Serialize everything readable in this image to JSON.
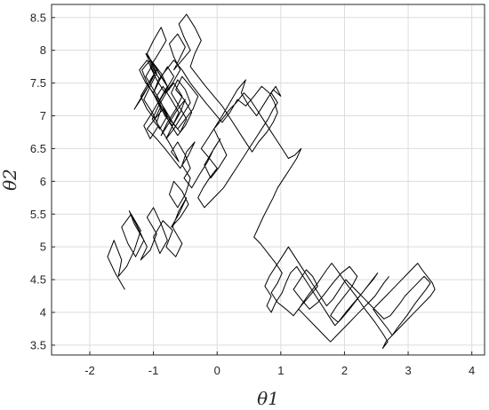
{
  "chart_data": {
    "type": "line",
    "title": "",
    "xlabel": "θ1",
    "ylabel": "θ2",
    "xlim": [
      -2.6,
      4.2
    ],
    "ylim": [
      3.35,
      8.7
    ],
    "x_ticks": [
      -2,
      -1,
      0,
      1,
      2,
      3,
      4
    ],
    "y_ticks": [
      3.5,
      4,
      4.5,
      5,
      5.5,
      6,
      6.5,
      7,
      7.5,
      8,
      8.5
    ],
    "x_tick_labels": [
      "-2",
      "-1",
      "0",
      "1",
      "2",
      "3",
      "4"
    ],
    "y_tick_labels": [
      "3.5",
      "4",
      "4.5",
      "5",
      "5.5",
      "6",
      "6.5",
      "7",
      "7.5",
      "8",
      "8.5"
    ],
    "grid": true,
    "legend": "none",
    "series": [
      {
        "color": "#000000",
        "x": [
          -1.45,
          -1.6,
          -1.72,
          -1.62,
          -1.5,
          -1.55,
          -1.42,
          -1.3,
          -1.2,
          -1.35,
          -1.5,
          -1.4,
          -1.28,
          -1.15,
          -1.3,
          -1.38,
          -1.25,
          -1.1,
          -1.2,
          -1.05,
          -0.95,
          -1.1,
          -1.0,
          -0.88,
          -0.78,
          -0.9,
          -1.0,
          -0.85,
          -0.7,
          -0.8,
          -0.65,
          -0.55,
          -0.7,
          -0.6,
          -0.48,
          -0.6,
          -0.72,
          -0.58,
          -0.45,
          -0.55,
          -0.68,
          -0.75,
          -0.62,
          -0.5,
          -0.42,
          -0.55,
          -0.48,
          -0.35,
          -0.45,
          -0.58,
          -0.7,
          -0.82,
          -0.95,
          -1.1,
          -0.98,
          -0.85,
          -0.75,
          -0.62,
          -0.5,
          -0.4,
          -0.52,
          -0.65,
          -0.55,
          -0.42,
          -0.3,
          -0.38,
          -0.5,
          -0.62,
          -0.75,
          -0.88,
          -1.0,
          -0.92,
          -0.8,
          -0.68,
          -0.55,
          -0.42,
          -0.3,
          -0.18,
          -0.05,
          0.08,
          0.2,
          0.32,
          0.45,
          0.58,
          0.7,
          0.82,
          0.9,
          0.95,
          0.88,
          0.78,
          0.65,
          0.55,
          0.48,
          0.38,
          0.28,
          0.18,
          0.08,
          -0.05,
          -0.18,
          -0.3,
          -0.42,
          -0.35,
          -0.25,
          -0.35,
          -0.48,
          -0.6,
          -0.52,
          -0.42,
          -0.55,
          -0.68,
          -0.6,
          -0.5,
          -0.62,
          -0.75,
          -0.68,
          -0.58,
          -0.7,
          -0.82,
          -0.95,
          -1.05,
          -0.92,
          -0.8,
          -0.88,
          -1.0,
          -1.1,
          -0.98,
          -0.85,
          -0.75,
          -0.88,
          -1.0,
          -1.12,
          -1.02,
          -0.9,
          -1.0,
          -1.12,
          -1.22,
          -1.1,
          -0.98,
          -1.08,
          -1.2,
          -1.3,
          -1.18,
          -1.05,
          -0.95,
          -1.08,
          -1.2,
          -1.1,
          -0.98,
          -0.88,
          -1.0,
          -0.9,
          -0.78,
          -0.68,
          -0.8,
          -0.92,
          -0.82,
          -0.7,
          -0.6,
          -0.72,
          -0.85,
          -0.95,
          -0.82,
          -0.7,
          -0.58,
          -0.48,
          -0.6,
          -0.72,
          -0.62,
          -0.5,
          -0.42,
          -0.55,
          -0.68,
          -0.8,
          -0.7,
          -0.58,
          -0.5,
          -0.62,
          -0.75,
          -0.88,
          -0.78,
          -0.65,
          -0.55,
          -0.68,
          -0.8,
          -0.92,
          -1.02,
          -0.9,
          -0.78,
          -0.88,
          -1.0,
          -1.12,
          -1.0,
          -0.88,
          -0.78,
          -0.9,
          -1.02,
          -1.15,
          -1.05,
          -0.92,
          -1.02,
          -1.15,
          -1.05,
          -0.95,
          -1.05,
          -1.18,
          -1.1,
          -0.98,
          -0.88,
          -0.95,
          -0.82,
          -0.7,
          -0.6,
          -0.72,
          -0.62,
          -0.5,
          -0.42,
          -0.52,
          -0.4,
          -0.28,
          -0.15,
          -0.05,
          0.05,
          -0.08,
          -0.2,
          -0.1,
          0.02,
          0.15,
          0.05,
          -0.05,
          0.08,
          0.2,
          0.32,
          0.45,
          0.38,
          0.5,
          0.62,
          0.75,
          0.88,
          1.0,
          0.92,
          0.85,
          0.95,
          0.88,
          0.8,
          0.7,
          0.6,
          0.5,
          0.4,
          0.3,
          0.2,
          0.1,
          0.0,
          -0.1,
          -0.2,
          -0.3,
          -0.22,
          -0.12,
          0.0,
          -0.12,
          -0.25,
          -0.15,
          -0.05,
          0.08,
          0.2,
          0.3,
          0.42,
          0.52,
          0.62,
          0.72,
          0.82,
          0.92,
          1.02,
          1.12,
          1.22,
          1.32,
          1.25,
          1.15,
          1.05,
          0.95,
          0.88,
          0.8,
          0.72,
          0.65,
          0.58,
          0.68,
          0.8,
          0.92,
          1.02,
          0.95,
          0.85,
          0.95,
          1.08,
          1.2,
          1.32,
          1.45,
          1.58,
          1.5,
          1.4,
          1.3,
          1.2,
          1.32,
          1.45,
          1.58,
          1.7,
          1.82,
          1.95,
          2.08,
          2.2,
          2.12,
          2.0,
          1.88,
          1.78,
          1.9,
          2.02,
          2.15,
          2.28,
          2.4,
          2.52,
          2.45,
          2.32,
          2.2,
          2.08,
          1.95,
          1.85,
          1.75,
          1.65,
          1.55,
          1.45,
          1.35,
          1.25,
          1.15,
          1.08,
          1.02,
          0.92,
          0.85,
          0.78,
          0.85,
          0.75,
          0.82,
          0.92,
          1.02,
          1.12,
          1.22,
          1.32,
          1.42,
          1.52,
          1.62,
          1.72,
          1.82,
          1.92,
          2.02,
          2.12,
          2.22,
          2.32,
          2.42,
          2.52,
          2.62,
          2.72,
          2.8,
          2.88,
          2.95,
          3.05,
          3.15,
          3.25,
          3.35,
          3.28,
          3.2,
          3.12,
          3.05,
          2.98,
          2.9,
          2.82,
          2.75,
          2.68,
          2.6,
          2.52,
          2.45,
          2.55,
          2.65,
          2.75,
          2.85,
          2.95,
          3.05,
          3.15,
          3.22,
          3.3,
          3.38,
          3.42,
          3.35,
          3.25,
          3.15,
          3.05,
          2.95,
          2.85,
          2.75,
          2.65,
          2.6,
          2.68,
          2.62,
          2.55,
          2.48,
          2.4,
          2.32,
          2.25,
          2.18,
          2.1,
          2.02,
          1.95,
          1.88,
          1.8,
          1.72,
          1.65,
          1.58,
          1.5,
          1.42,
          1.35,
          1.28,
          1.38,
          1.48,
          1.58,
          1.68,
          1.78,
          1.88,
          1.98,
          2.08,
          2.18,
          2.28,
          2.38,
          2.48,
          2.55,
          2.62,
          2.7
        ],
        "y": [
          4.35,
          4.6,
          4.85,
          5.1,
          4.8,
          4.55,
          4.7,
          4.95,
          5.25,
          5.5,
          5.3,
          5.05,
          4.85,
          5.1,
          5.35,
          5.55,
          5.3,
          5.0,
          4.8,
          4.95,
          5.2,
          5.45,
          5.6,
          5.35,
          5.1,
          4.9,
          5.15,
          5.4,
          5.25,
          5.0,
          4.85,
          5.05,
          5.3,
          5.55,
          5.75,
          5.5,
          5.3,
          5.45,
          5.65,
          5.85,
          6.0,
          5.8,
          5.6,
          5.8,
          6.05,
          6.25,
          6.45,
          6.6,
          6.4,
          6.2,
          6.35,
          6.5,
          6.65,
          6.8,
          6.95,
          7.1,
          6.9,
          6.7,
          6.85,
          7.05,
          7.25,
          7.4,
          7.6,
          7.45,
          7.3,
          7.1,
          6.95,
          6.8,
          6.95,
          7.15,
          7.35,
          7.55,
          7.7,
          7.85,
          7.7,
          7.5,
          7.35,
          7.2,
          7.05,
          6.9,
          7.05,
          7.25,
          7.15,
          7.3,
          7.45,
          7.35,
          7.2,
          7.05,
          6.9,
          6.75,
          6.6,
          6.45,
          6.55,
          6.7,
          6.85,
          7.0,
          7.15,
          7.3,
          7.45,
          7.6,
          7.75,
          7.95,
          8.15,
          8.35,
          8.55,
          8.4,
          8.2,
          8.0,
          7.85,
          7.7,
          7.85,
          8.05,
          8.25,
          8.1,
          7.9,
          7.7,
          7.5,
          7.35,
          7.55,
          7.75,
          7.95,
          8.15,
          8.35,
          8.15,
          7.95,
          7.75,
          7.55,
          7.4,
          7.6,
          7.8,
          7.95,
          7.75,
          7.55,
          7.35,
          7.5,
          7.7,
          7.85,
          7.65,
          7.45,
          7.25,
          7.1,
          7.3,
          7.5,
          7.7,
          7.5,
          7.3,
          7.1,
          6.95,
          7.15,
          7.35,
          7.55,
          7.75,
          7.6,
          7.4,
          7.2,
          7.0,
          6.85,
          7.05,
          7.25,
          7.45,
          7.3,
          7.1,
          6.9,
          6.75,
          6.95,
          7.15,
          7.35,
          7.55,
          7.4,
          7.2,
          7.0,
          6.8,
          6.65,
          6.85,
          7.05,
          7.25,
          7.1,
          6.9,
          6.7,
          6.9,
          7.1,
          7.3,
          7.5,
          7.35,
          7.15,
          6.95,
          6.8,
          7.0,
          7.2,
          7.4,
          7.6,
          7.8,
          7.65,
          7.45,
          7.25,
          7.05,
          6.85,
          6.65,
          6.85,
          7.05,
          7.25,
          7.45,
          7.65,
          7.85,
          7.7,
          7.5,
          7.3,
          7.1,
          6.9,
          6.7,
          6.5,
          6.3,
          6.45,
          6.6,
          6.4,
          6.2,
          6.05,
          5.9,
          6.1,
          6.3,
          6.5,
          6.65,
          6.45,
          6.25,
          6.05,
          6.2,
          6.4,
          6.6,
          6.8,
          7.0,
          7.2,
          7.4,
          7.55,
          7.35,
          7.15,
          7.0,
          7.2,
          7.4,
          7.3,
          7.45,
          7.35,
          7.2,
          7.1,
          6.95,
          6.8,
          6.65,
          6.5,
          6.35,
          6.2,
          6.05,
          5.9,
          5.8,
          5.7,
          5.6,
          5.75,
          5.9,
          6.05,
          6.2,
          6.35,
          6.5,
          6.65,
          6.8,
          6.95,
          7.1,
          7.2,
          7.35,
          7.25,
          7.1,
          6.95,
          6.8,
          6.65,
          6.5,
          6.35,
          6.4,
          6.5,
          6.35,
          6.2,
          6.05,
          5.9,
          5.75,
          5.6,
          5.45,
          5.3,
          5.15,
          5.05,
          4.9,
          4.75,
          4.6,
          4.45,
          4.3,
          4.15,
          4.05,
          3.95,
          4.1,
          4.25,
          4.4,
          4.55,
          4.65,
          4.5,
          4.35,
          4.2,
          4.05,
          4.15,
          4.3,
          4.45,
          4.6,
          4.7,
          4.55,
          4.4,
          4.25,
          4.1,
          3.95,
          3.85,
          4.0,
          4.15,
          4.3,
          4.45,
          4.6,
          4.5,
          4.35,
          4.2,
          4.05,
          3.9,
          3.8,
          3.95,
          4.1,
          4.25,
          4.4,
          4.55,
          4.7,
          4.6,
          4.45,
          4.3,
          4.15,
          4.0,
          4.1,
          4.25,
          4.4,
          4.55,
          4.7,
          4.85,
          5.0,
          4.85,
          4.7,
          4.55,
          4.4,
          4.25,
          4.1,
          4.2,
          4.35,
          4.5,
          4.4,
          4.3,
          4.2,
          4.1,
          4.0,
          3.9,
          3.95,
          4.05,
          4.15,
          4.25,
          4.35,
          4.45,
          4.55,
          4.45,
          4.35,
          4.25,
          4.15,
          4.05,
          3.95,
          3.85,
          3.75,
          3.65,
          3.75,
          3.85,
          3.95,
          4.05,
          4.15,
          4.25,
          4.35,
          4.45,
          4.55,
          4.65,
          4.75,
          4.65,
          4.55,
          4.45,
          4.35,
          4.25,
          4.15,
          4.05,
          3.95,
          3.85,
          3.75,
          3.65,
          3.55,
          3.45,
          3.55,
          3.65,
          3.75,
          3.85,
          3.95,
          4.05,
          4.15,
          4.25,
          4.35,
          4.45,
          4.55,
          4.65,
          4.75,
          4.65,
          4.55,
          4.45,
          4.35,
          4.25,
          4.15,
          4.05,
          3.95,
          3.85,
          3.75,
          3.65,
          3.55,
          3.65,
          3.75,
          3.85,
          3.95,
          4.05,
          4.15,
          4.25,
          4.35,
          4.45,
          4.55
        ]
      }
    ]
  }
}
